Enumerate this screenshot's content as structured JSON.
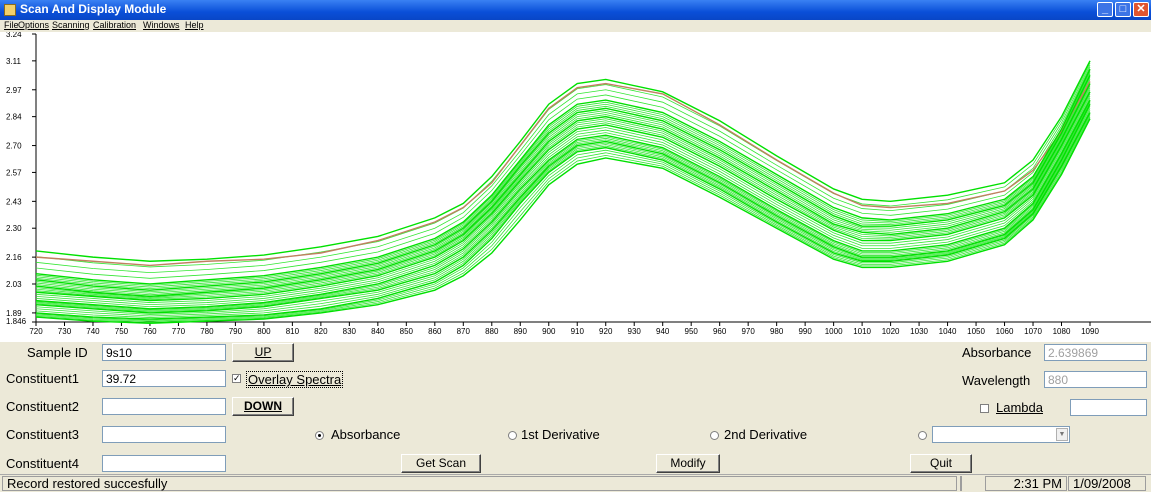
{
  "window": {
    "title": "Scan And Display Module"
  },
  "menu": [
    {
      "label": "File"
    },
    {
      "label": "Options"
    },
    {
      "label": "Scanning"
    },
    {
      "label": "Calibration"
    },
    {
      "label": "Windows"
    },
    {
      "label": "Help"
    }
  ],
  "chart_data": {
    "type": "line",
    "ylim": [
      1.846,
      3.24
    ],
    "xlim": [
      720,
      1090
    ],
    "y_ticks": [
      "3.24",
      "3.11",
      "2.97",
      "2.84",
      "2.70",
      "2.57",
      "2.43",
      "2.30",
      "2.16",
      "2.03",
      "1.89",
      "1.846"
    ],
    "x_ticks": [
      "720",
      "730",
      "740",
      "750",
      "760",
      "770",
      "780",
      "790",
      "800",
      "810",
      "820",
      "830",
      "840",
      "850",
      "860",
      "870",
      "880",
      "890",
      "900",
      "910",
      "920",
      "930",
      "940",
      "950",
      "960",
      "970",
      "980",
      "990",
      "1000",
      "1010",
      "1020",
      "1030",
      "1040",
      "1050",
      "1060",
      "1070",
      "1080",
      "1090"
    ],
    "x": [
      720,
      740,
      760,
      780,
      800,
      820,
      840,
      860,
      870,
      880,
      890,
      900,
      910,
      920,
      940,
      960,
      980,
      1000,
      1010,
      1020,
      1040,
      1060,
      1070,
      1080,
      1090
    ],
    "series": [
      {
        "values": [
          2.16,
          2.14,
          2.12,
          2.14,
          2.15,
          2.18,
          2.24,
          2.33,
          2.4,
          2.52,
          2.7,
          2.88,
          2.98,
          3.0,
          2.95,
          2.8,
          2.63,
          2.47,
          2.41,
          2.4,
          2.42,
          2.48,
          2.58,
          2.77,
          3.01
        ],
        "color": "#c08060"
      },
      {
        "values": [
          2.19,
          2.16,
          2.14,
          2.15,
          2.17,
          2.21,
          2.26,
          2.35,
          2.42,
          2.55,
          2.72,
          2.9,
          3.0,
          3.02,
          2.96,
          2.82,
          2.65,
          2.49,
          2.44,
          2.43,
          2.46,
          2.52,
          2.63,
          2.84,
          3.11
        ],
        "color": "#00e000"
      },
      {
        "values": [
          2.08,
          2.05,
          2.03,
          2.05,
          2.07,
          2.11,
          2.16,
          2.25,
          2.33,
          2.46,
          2.63,
          2.8,
          2.9,
          2.92,
          2.86,
          2.72,
          2.56,
          2.4,
          2.35,
          2.34,
          2.37,
          2.44,
          2.55,
          2.78,
          3.07
        ],
        "color": "#00e000"
      },
      {
        "values": [
          2.05,
          2.02,
          2.0,
          2.02,
          2.04,
          2.08,
          2.13,
          2.22,
          2.3,
          2.43,
          2.6,
          2.76,
          2.86,
          2.88,
          2.82,
          2.68,
          2.52,
          2.36,
          2.31,
          2.31,
          2.34,
          2.41,
          2.52,
          2.76,
          3.04
        ],
        "color": "#00e000"
      },
      {
        "values": [
          2.02,
          1.99,
          1.97,
          1.99,
          2.01,
          2.05,
          2.1,
          2.19,
          2.27,
          2.4,
          2.56,
          2.72,
          2.82,
          2.84,
          2.78,
          2.64,
          2.48,
          2.32,
          2.28,
          2.27,
          2.3,
          2.38,
          2.49,
          2.73,
          3.0
        ],
        "color": "#00e000"
      },
      {
        "values": [
          1.99,
          1.97,
          1.95,
          1.96,
          1.98,
          2.02,
          2.07,
          2.16,
          2.24,
          2.37,
          2.53,
          2.68,
          2.78,
          2.8,
          2.74,
          2.6,
          2.44,
          2.29,
          2.24,
          2.24,
          2.27,
          2.35,
          2.46,
          2.7,
          2.96
        ],
        "color": "#00e000"
      },
      {
        "values": [
          1.95,
          1.93,
          1.91,
          1.92,
          1.94,
          1.98,
          2.03,
          2.12,
          2.2,
          2.33,
          2.49,
          2.63,
          2.73,
          2.75,
          2.69,
          2.55,
          2.39,
          2.24,
          2.19,
          2.19,
          2.22,
          2.3,
          2.42,
          2.66,
          2.92
        ],
        "color": "#00e000"
      },
      {
        "values": [
          1.93,
          1.91,
          1.89,
          1.9,
          1.92,
          1.96,
          2.0,
          2.08,
          2.16,
          2.29,
          2.45,
          2.6,
          2.7,
          2.72,
          2.66,
          2.52,
          2.36,
          2.21,
          2.16,
          2.16,
          2.19,
          2.27,
          2.39,
          2.63,
          2.9
        ],
        "color": "#00e000"
      },
      {
        "values": [
          1.89,
          1.87,
          1.86,
          1.87,
          1.88,
          1.91,
          1.96,
          2.04,
          2.12,
          2.25,
          2.42,
          2.57,
          2.67,
          2.69,
          2.63,
          2.49,
          2.33,
          2.18,
          2.14,
          2.14,
          2.17,
          2.25,
          2.37,
          2.6,
          2.86
        ],
        "color": "#00e000"
      },
      {
        "values": [
          1.87,
          1.85,
          1.84,
          1.85,
          1.86,
          1.89,
          1.93,
          2.0,
          2.07,
          2.18,
          2.34,
          2.51,
          2.61,
          2.64,
          2.59,
          2.45,
          2.3,
          2.15,
          2.11,
          2.11,
          2.14,
          2.22,
          2.34,
          2.56,
          2.83
        ],
        "color": "#00e000"
      }
    ]
  },
  "form": {
    "sample_id_label": "Sample ID",
    "sample_id_value": "9s10",
    "constituent1_label": "Constituent1",
    "constituent1_value": "39.72",
    "constituent2_label": "Constituent2",
    "constituent2_value": "",
    "constituent3_label": "Constituent3",
    "constituent3_value": "",
    "constituent4_label": "Constituent4",
    "constituent4_value": "",
    "up_button": "UP",
    "down_button": "DOWN",
    "overlay_label": "Overlay Spectra",
    "overlay_checked": true,
    "radio_absorbance": "Absorbance",
    "radio_1st": "1st Derivative",
    "radio_2nd": "2nd Derivative",
    "get_scan": "Get Scan",
    "modify": "Modify",
    "quit": "Quit",
    "absorbance_label": "Absorbance",
    "absorbance_value": "2.639869",
    "wavelength_label": "Wavelength",
    "wavelength_value": "880",
    "lambda_label": "Lambda",
    "lambda_value": "",
    "dropdown_value": ""
  },
  "status": {
    "message": "Record restored succesfully",
    "time": "2:31 PM",
    "date": "1/09/2008"
  }
}
